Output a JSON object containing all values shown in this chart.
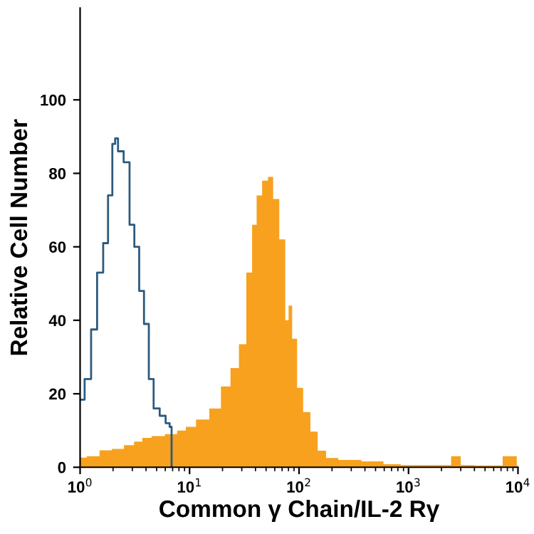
{
  "chart_data": {
    "type": "step",
    "xlabel": "Common γ Chain/IL-2 Rγ",
    "ylabel": "Relative Cell Number",
    "log": "x",
    "grid": false,
    "xlim": [
      1,
      10000
    ],
    "xticks": [
      {
        "value": 1,
        "label": "10$^{0}$"
      },
      {
        "value": 10,
        "label": "10$^{1}$"
      },
      {
        "value": 100,
        "label": "10$^{2}$"
      },
      {
        "value": 1000,
        "label": "10$^{3}$"
      },
      {
        "value": 10000,
        "label": "10$^{4}$"
      }
    ],
    "ylim": [
      0,
      125
    ],
    "yticks": [
      0,
      20,
      40,
      60,
      80,
      100
    ],
    "series": [
      {
        "type": "area",
        "color": "#f7a11e",
        "x": [
          1,
          1.3,
          1.71,
          2.2,
          2.83,
          3.4,
          4,
          5,
          6.9,
          8.5,
          10,
          12.9,
          17.4,
          21.3,
          26,
          30.5,
          35.5,
          39,
          43,
          49,
          55,
          61,
          71,
          78.6,
          82,
          91,
          101,
          117,
          137,
          159,
          194,
          263,
          480,
          700,
          1000,
          2000,
          2900,
          3100,
          5000,
          9500,
          10000
        ],
        "values": [
          2.6,
          3,
          4.6,
          5,
          6,
          7,
          8,
          8.5,
          9,
          10,
          11,
          13,
          16,
          22,
          27,
          33.5,
          53,
          66,
          74,
          78,
          79,
          73,
          62,
          40,
          44,
          35,
          21.6,
          15,
          9.7,
          4.5,
          2.5,
          2,
          1.6,
          0.8,
          0.6,
          0.6,
          3,
          0.6,
          0.5,
          3,
          0.5
        ]
      },
      {
        "color": "#2c5a7e",
        "x": [
          1,
          1.2,
          1.32,
          1.54,
          1.71,
          1.89,
          2.05,
          2.13,
          2.31,
          2.69,
          2.97,
          3.29,
          3.64,
          4.03,
          4.46,
          4.93,
          5.74,
          6.35,
          6.8,
          6.9
        ],
        "values": [
          18.4,
          24,
          37.5,
          53,
          61,
          74,
          88,
          89.5,
          86,
          83,
          66,
          60,
          48,
          39,
          24,
          16,
          14,
          12,
          11,
          0
        ]
      }
    ]
  }
}
